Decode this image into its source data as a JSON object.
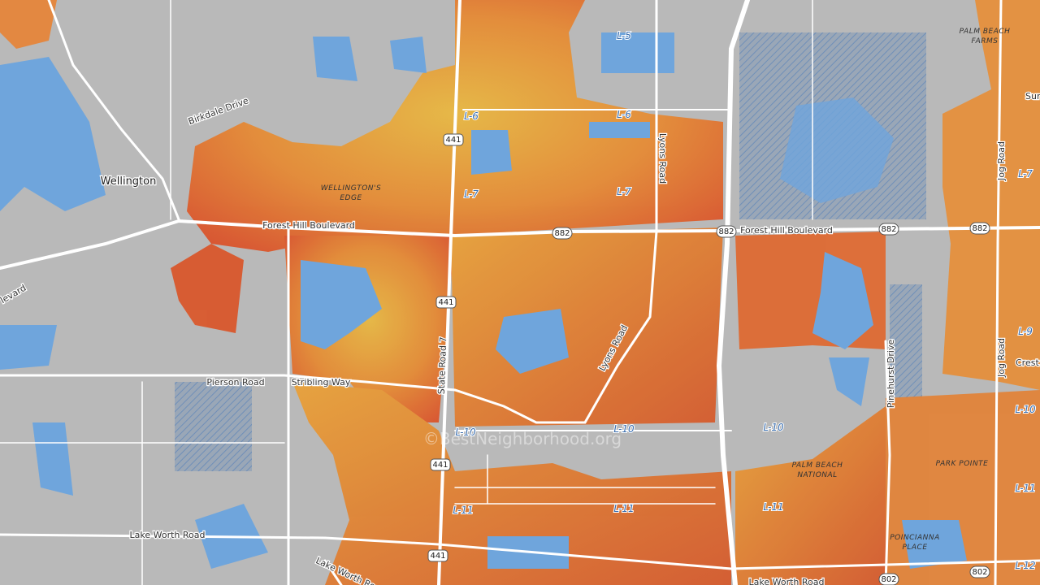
{
  "labels": [
    "PALM BEACH",
    "FARMS",
    "Wellington",
    "Birkdale Drive",
    "WELLINGTON'S",
    "EDGE",
    "Forest Hill Boulevard",
    "Forest Hill Boulevard",
    "L-5",
    "L-6",
    "L-6",
    "L-7",
    "L-7",
    "L-7",
    "Lyons Road",
    "Lyons Road",
    "State Road 7",
    "Pierson Road",
    "Stribling Way",
    "L-10",
    "L-10",
    "L-10",
    "L-10",
    "L-11",
    "L-11",
    "L-11",
    "L-11",
    "Lake Worth Road",
    "Lake Worth Road",
    "Lake Worth Road",
    "PALM BEACH",
    "NATIONAL",
    "PARK POINTE",
    "POINCIANNA",
    "PLACE",
    "Pinehurst Drive",
    "Jog Road",
    "Jog Road",
    "Crest",
    "L-9",
    "L-12",
    "Sum",
    "levard",
    "©BestNeighborhood.org"
  ],
  "shields": [
    "441",
    "441",
    "441",
    "441",
    "882",
    "882",
    "882",
    "882",
    "802",
    "802"
  ]
}
